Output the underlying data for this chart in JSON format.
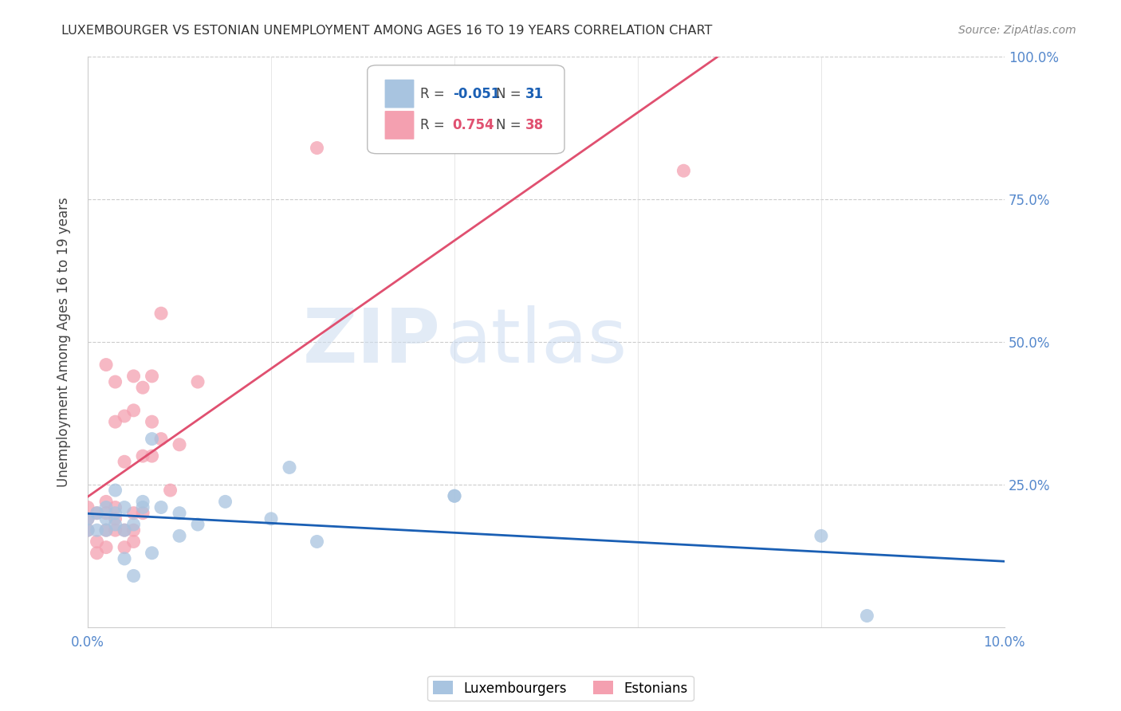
{
  "title": "LUXEMBOURGER VS ESTONIAN UNEMPLOYMENT AMONG AGES 16 TO 19 YEARS CORRELATION CHART",
  "source": "Source: ZipAtlas.com",
  "ylabel": "Unemployment Among Ages 16 to 19 years",
  "xlim": [
    0.0,
    0.1
  ],
  "ylim": [
    0.0,
    1.0
  ],
  "x_ticks": [
    0.0,
    0.02,
    0.04,
    0.06,
    0.08,
    0.1
  ],
  "y_ticks": [
    0.0,
    0.25,
    0.5,
    0.75,
    1.0
  ],
  "lux_R": -0.051,
  "lux_N": 31,
  "est_R": 0.754,
  "est_N": 38,
  "lux_color": "#a8c4e0",
  "est_color": "#f4a0b0",
  "lux_line_color": "#1a5fb4",
  "est_line_color": "#e05070",
  "legend_lux_label": "Luxembourgers",
  "legend_est_label": "Estonians",
  "watermark_zip": "ZIP",
  "watermark_atlas": "atlas",
  "lux_scatter_x": [
    0.0,
    0.0,
    0.001,
    0.001,
    0.002,
    0.002,
    0.002,
    0.003,
    0.003,
    0.003,
    0.004,
    0.004,
    0.004,
    0.005,
    0.005,
    0.006,
    0.006,
    0.007,
    0.007,
    0.008,
    0.01,
    0.01,
    0.012,
    0.015,
    0.02,
    0.022,
    0.025,
    0.04,
    0.04,
    0.08,
    0.085
  ],
  "lux_scatter_y": [
    0.17,
    0.19,
    0.17,
    0.2,
    0.17,
    0.19,
    0.21,
    0.18,
    0.2,
    0.24,
    0.12,
    0.17,
    0.21,
    0.09,
    0.18,
    0.21,
    0.22,
    0.13,
    0.33,
    0.21,
    0.16,
    0.2,
    0.18,
    0.22,
    0.19,
    0.28,
    0.15,
    0.23,
    0.23,
    0.16,
    0.02
  ],
  "est_scatter_x": [
    0.0,
    0.0,
    0.0,
    0.001,
    0.001,
    0.001,
    0.002,
    0.002,
    0.002,
    0.002,
    0.002,
    0.003,
    0.003,
    0.003,
    0.003,
    0.003,
    0.004,
    0.004,
    0.004,
    0.004,
    0.005,
    0.005,
    0.005,
    0.005,
    0.005,
    0.006,
    0.006,
    0.006,
    0.007,
    0.007,
    0.007,
    0.008,
    0.008,
    0.009,
    0.01,
    0.012,
    0.025,
    0.065
  ],
  "est_scatter_y": [
    0.17,
    0.19,
    0.21,
    0.13,
    0.15,
    0.2,
    0.14,
    0.17,
    0.2,
    0.22,
    0.46,
    0.17,
    0.19,
    0.21,
    0.36,
    0.43,
    0.14,
    0.17,
    0.29,
    0.37,
    0.15,
    0.17,
    0.2,
    0.38,
    0.44,
    0.2,
    0.3,
    0.42,
    0.3,
    0.36,
    0.44,
    0.33,
    0.55,
    0.24,
    0.32,
    0.43,
    0.84,
    0.8
  ]
}
